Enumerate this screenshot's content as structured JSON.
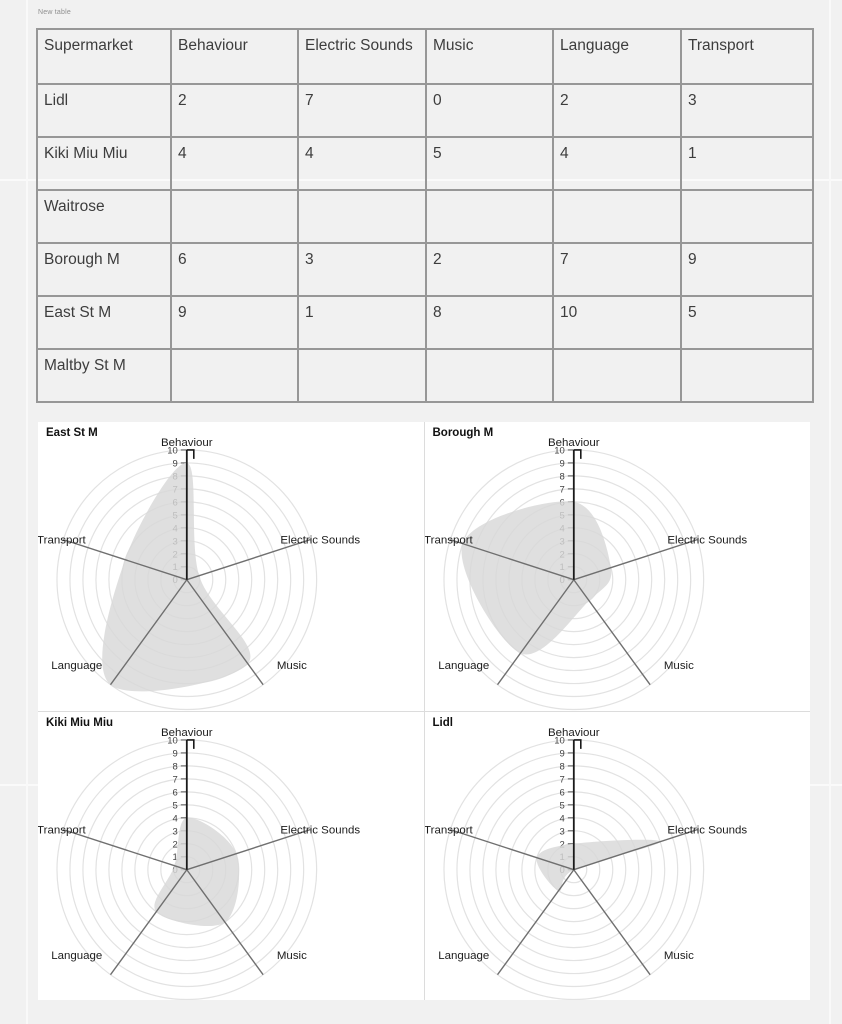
{
  "canvas": {
    "table_label": "New table"
  },
  "table": {
    "columns": [
      "Supermarket",
      "Behaviour",
      "Electric Sounds",
      "Music",
      "Language",
      "Transport"
    ],
    "rows": [
      {
        "name": "Lidl",
        "values": [
          "2",
          "7",
          "0",
          "2",
          "3"
        ]
      },
      {
        "name": "Kiki Miu Miu",
        "values": [
          "4",
          "4",
          "5",
          "4",
          "1"
        ]
      },
      {
        "name": "Waitrose",
        "values": [
          "",
          "",
          "",
          "",
          ""
        ]
      },
      {
        "name": "Borough M",
        "values": [
          "6",
          "3",
          "2",
          "7",
          "9"
        ]
      },
      {
        "name": "East St M",
        "values": [
          "9",
          "1",
          "8",
          "10",
          "5"
        ]
      },
      {
        "name": "Maltby St M",
        "values": [
          "",
          "",
          "",
          "",
          ""
        ]
      }
    ]
  },
  "chart_data": [
    {
      "type": "radar",
      "title": "East St M",
      "axes": [
        "Behaviour",
        "Electric Sounds",
        "Music",
        "Language",
        "Transport"
      ],
      "values": [
        9,
        1,
        8,
        10,
        5
      ],
      "rmin": 0,
      "rmax": 10,
      "tick_step": 1,
      "first_axis_position": "top",
      "axis_direction": "clockwise",
      "grid": "circular-on",
      "legend": "none",
      "fill_color": "#d8d8d8",
      "grid_color": "#e2e2e2",
      "spoke_color": "#6f6f6f",
      "axis_color": "#1a1a1a"
    },
    {
      "type": "radar",
      "title": "Borough M",
      "axes": [
        "Behaviour",
        "Electric Sounds",
        "Music",
        "Language",
        "Transport"
      ],
      "values": [
        6,
        3,
        2,
        7,
        9
      ],
      "rmin": 0,
      "rmax": 10,
      "tick_step": 1,
      "first_axis_position": "top",
      "axis_direction": "clockwise",
      "grid": "circular-on",
      "legend": "none",
      "fill_color": "#d8d8d8",
      "grid_color": "#e2e2e2",
      "spoke_color": "#6f6f6f",
      "axis_color": "#1a1a1a"
    },
    {
      "type": "radar",
      "title": "Kiki Miu Miu",
      "axes": [
        "Behaviour",
        "Electric Sounds",
        "Music",
        "Language",
        "Transport"
      ],
      "values": [
        4,
        4,
        5,
        4,
        1
      ],
      "rmin": 0,
      "rmax": 10,
      "tick_step": 1,
      "first_axis_position": "top",
      "axis_direction": "clockwise",
      "grid": "circular-on",
      "legend": "none",
      "fill_color": "#d8d8d8",
      "grid_color": "#e2e2e2",
      "spoke_color": "#6f6f6f",
      "axis_color": "#1a1a1a"
    },
    {
      "type": "radar",
      "title": "Lidl",
      "axes": [
        "Behaviour",
        "Electric Sounds",
        "Music",
        "Language",
        "Transport"
      ],
      "values": [
        2,
        7,
        0,
        2,
        3
      ],
      "rmin": 0,
      "rmax": 10,
      "tick_step": 1,
      "first_axis_position": "top",
      "axis_direction": "clockwise",
      "grid": "circular-on",
      "legend": "none",
      "fill_color": "#d8d8d8",
      "grid_color": "#e2e2e2",
      "spoke_color": "#6f6f6f",
      "axis_color": "#1a1a1a"
    }
  ],
  "colors": {
    "page_background": "#f1f1f1",
    "panel_background": "#ffffff",
    "table_border": "#979797",
    "table_text": "#3d3d3d",
    "radar_fill": "#d8d8d8",
    "tick_text": "#424242"
  }
}
